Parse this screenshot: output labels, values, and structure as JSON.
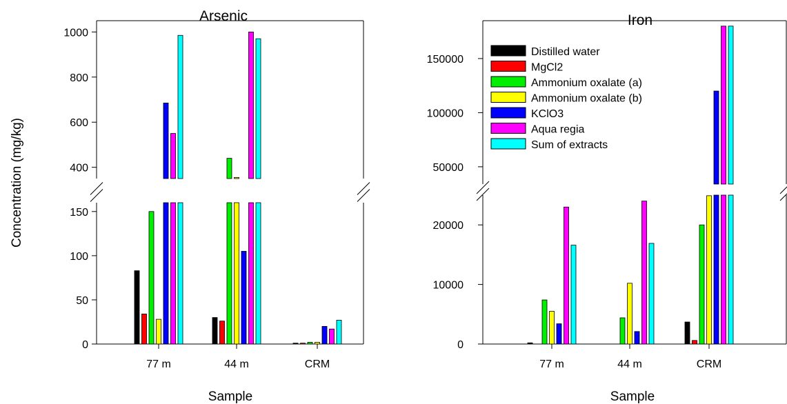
{
  "ylabel": "Concentration (mg/kg)",
  "legend": {
    "placement": "top-left of Iron panel",
    "entries": [
      "Distilled water",
      "MgCl2",
      "Ammonium oxalate (a)",
      "Ammonium oxalate (b)",
      "KClO3",
      "Aqua regia",
      "Sum of extracts"
    ]
  },
  "colors": [
    "#000000",
    "#ff0000",
    "#00ee00",
    "#ffff00",
    "#0000ff",
    "#ff00ff",
    "#00ffff"
  ],
  "chart_data": [
    {
      "type": "bar",
      "title": "Arsenic",
      "xlabel": "Sample",
      "ylabel": "Concentration (mg/kg)",
      "categories": [
        "77 m",
        "44 m",
        "CRM"
      ],
      "broken_axis": {
        "lower_range": [
          0,
          160
        ],
        "upper_range": [
          350,
          1050
        ]
      },
      "lower_ticks": [
        0,
        50,
        100,
        150
      ],
      "upper_ticks": [
        400,
        600,
        800,
        1000
      ],
      "series": [
        {
          "name": "Distilled water",
          "values": [
            83,
            30,
            1
          ]
        },
        {
          "name": "MgCl2",
          "values": [
            34,
            26,
            1
          ]
        },
        {
          "name": "Ammonium oxalate (a)",
          "values": [
            150,
            440,
            2
          ]
        },
        {
          "name": "Ammonium oxalate (b)",
          "values": [
            28,
            355,
            2
          ]
        },
        {
          "name": "KClO3",
          "values": [
            685,
            105,
            20
          ]
        },
        {
          "name": "Aqua regia",
          "values": [
            550,
            1000,
            17
          ]
        },
        {
          "name": "Sum of extracts",
          "values": [
            985,
            970,
            27
          ]
        }
      ]
    },
    {
      "type": "bar",
      "title": "Iron",
      "xlabel": "Sample",
      "ylabel": "",
      "categories": [
        "77 m",
        "44 m",
        "CRM"
      ],
      "broken_axis": {
        "lower_range": [
          0,
          25000
        ],
        "upper_range": [
          34000,
          185000
        ]
      },
      "lower_ticks": [
        0,
        10000,
        20000
      ],
      "upper_ticks": [
        50000,
        100000,
        150000
      ],
      "series": [
        {
          "name": "Distilled water",
          "values": [
            200,
            0,
            3700
          ]
        },
        {
          "name": "MgCl2",
          "values": [
            0,
            0,
            600
          ]
        },
        {
          "name": "Ammonium oxalate (a)",
          "values": [
            7400,
            4400,
            20000
          ]
        },
        {
          "name": "Ammonium oxalate (b)",
          "values": [
            5500,
            10200,
            24900
          ]
        },
        {
          "name": "KClO3",
          "values": [
            3400,
            2100,
            120000
          ]
        },
        {
          "name": "Aqua regia",
          "values": [
            23000,
            24000,
            180000
          ]
        },
        {
          "name": "Sum of extracts",
          "values": [
            16600,
            16900,
            180000
          ]
        }
      ]
    }
  ]
}
